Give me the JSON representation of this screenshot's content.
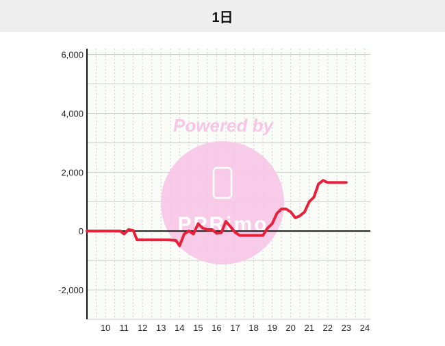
{
  "header": {
    "title": "1日"
  },
  "watermark": {
    "text": "Powered by",
    "brand": "PPRimo",
    "color": "#f7c6e6"
  },
  "colors": {
    "line": "#e8213a",
    "zero_line": "#111111",
    "grid": "#cccccc",
    "plot_bg": "#fafcf8"
  },
  "chart_data": {
    "type": "line",
    "title": "",
    "xlabel": "",
    "ylabel": "",
    "xlim": [
      9,
      24.3
    ],
    "ylim": [
      -3000,
      6200
    ],
    "x_ticks": [
      10,
      11,
      12,
      13,
      14,
      15,
      16,
      17,
      18,
      19,
      20,
      21,
      22,
      23,
      24
    ],
    "x_tick_labels": [
      "10",
      "11",
      "12",
      "13",
      "14",
      "15",
      "16",
      "17",
      "18",
      "19",
      "20",
      "21",
      "22",
      "23",
      "24"
    ],
    "y_ticks": [
      -2000,
      0,
      2000,
      4000,
      6000
    ],
    "y_tick_labels": [
      "-2,000",
      "0",
      "2,000",
      "4,000",
      "6,000"
    ],
    "grid": true,
    "series": [
      {
        "points": [
          [
            9,
            0
          ],
          [
            10.8,
            0
          ],
          [
            11.0,
            -100
          ],
          [
            11.25,
            50
          ],
          [
            11.5,
            20
          ],
          [
            11.7,
            -300
          ],
          [
            12.3,
            -300
          ],
          [
            13.4,
            -300
          ],
          [
            13.8,
            -320
          ],
          [
            14.0,
            -500
          ],
          [
            14.25,
            -100
          ],
          [
            14.5,
            0
          ],
          [
            14.75,
            -100
          ],
          [
            15.0,
            250
          ],
          [
            15.25,
            100
          ],
          [
            15.5,
            50
          ],
          [
            15.75,
            50
          ],
          [
            16.0,
            -80
          ],
          [
            16.25,
            -60
          ],
          [
            16.5,
            330
          ],
          [
            16.75,
            150
          ],
          [
            17.0,
            -50
          ],
          [
            17.25,
            -150
          ],
          [
            17.5,
            -150
          ],
          [
            18.0,
            -150
          ],
          [
            18.5,
            -150
          ],
          [
            18.75,
            100
          ],
          [
            19.0,
            250
          ],
          [
            19.25,
            600
          ],
          [
            19.5,
            750
          ],
          [
            19.75,
            750
          ],
          [
            20.0,
            650
          ],
          [
            20.25,
            450
          ],
          [
            20.5,
            520
          ],
          [
            20.75,
            650
          ],
          [
            21.0,
            1000
          ],
          [
            21.25,
            1150
          ],
          [
            21.5,
            1600
          ],
          [
            21.75,
            1720
          ],
          [
            22.0,
            1650
          ],
          [
            22.5,
            1650
          ],
          [
            23.0,
            1650
          ]
        ]
      }
    ]
  }
}
